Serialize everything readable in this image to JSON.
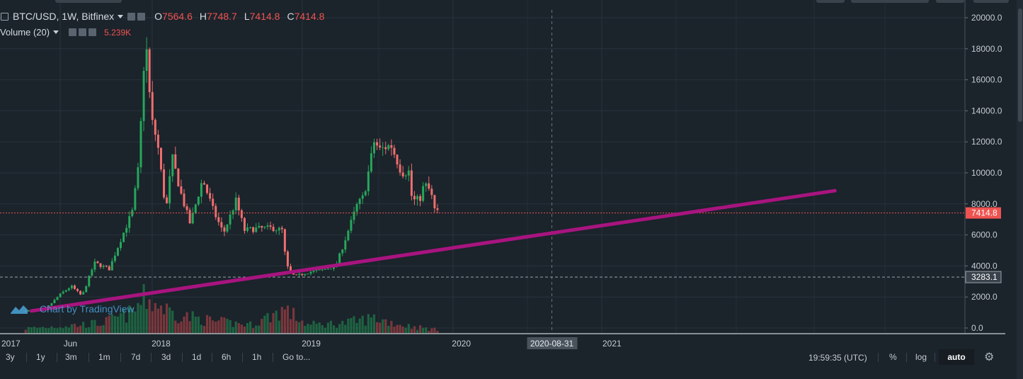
{
  "legend": {
    "symbol": "BTC/USD, 1W, Bitfinex",
    "open_label": "O",
    "open": "7564.6",
    "high_label": "H",
    "high": "7748.7",
    "low_label": "L",
    "low": "7414.8",
    "close_label": "C",
    "close": "7414.8",
    "volume_label": "Volume (20)",
    "volume_value": "5.239K"
  },
  "watermark": "Chart by TradingView",
  "toolbar": {
    "ranges": [
      "3y",
      "1y",
      "3m",
      "1m",
      "7d",
      "3d",
      "1d",
      "6h",
      "1h",
      "Go to..."
    ],
    "time": "19:59:35 (UTC)",
    "percent": "%",
    "log": "log",
    "auto": "auto"
  },
  "colors": {
    "background": "#1b232b",
    "up": "#26a65b",
    "down": "#ef6e6e",
    "trendline": "#a8147f",
    "price_label": "#ef5350"
  },
  "chart_data": {
    "type": "candlestick",
    "title": "BTC/USD, 1W, Bitfinex",
    "y_ticks": [
      0,
      2000,
      4000,
      6000,
      8000,
      10000,
      12000,
      14000,
      16000,
      18000,
      20000
    ],
    "y_tick_labels": [
      "0.0",
      "2000.0",
      "4000.0",
      "6000.0",
      "8000.0",
      "10000.0",
      "12000.0",
      "14000.0",
      "16000.0",
      "18000.0",
      "20000.0"
    ],
    "ylim": [
      0,
      20000
    ],
    "x_tick_labels": [
      {
        "label": "2017",
        "date": "2017-01-01"
      },
      {
        "label": "Jun",
        "date": "2017-06-01"
      },
      {
        "label": "2018",
        "date": "2018-01-01"
      },
      {
        "label": "2019",
        "date": "2019-01-01"
      },
      {
        "label": "2020",
        "date": "2020-01-01"
      },
      {
        "label": "2021",
        "date": "2021-01-01"
      }
    ],
    "xlim": [
      "2016-12-30",
      "2022-07-20"
    ],
    "cursor_date": "2020-08-31",
    "last_price": 7414.8,
    "last_price_label": "7414.8",
    "marked_price": 3283.1,
    "marked_price_label": "3283.1",
    "trendline": {
      "start": [
        "2017-03-15",
        1100
      ],
      "end": [
        "2022-07-20",
        8850
      ]
    },
    "price_keypoints": [
      [
        "2017-03-01",
        1100
      ],
      [
        "2017-04-20",
        1250
      ],
      [
        "2017-05-25",
        2200
      ],
      [
        "2017-06-20",
        2700
      ],
      [
        "2017-07-16",
        2050
      ],
      [
        "2017-08-15",
        4200
      ],
      [
        "2017-09-20",
        3800
      ],
      [
        "2017-10-15",
        5500
      ],
      [
        "2017-11-15",
        7500
      ],
      [
        "2017-12-01",
        10500
      ],
      [
        "2017-12-17",
        19000
      ],
      [
        "2017-12-31",
        13500
      ],
      [
        "2018-01-15",
        12000
      ],
      [
        "2018-02-05",
        7500
      ],
      [
        "2018-02-20",
        11000
      ],
      [
        "2018-03-15",
        8500
      ],
      [
        "2018-04-05",
        6700
      ],
      [
        "2018-05-05",
        9600
      ],
      [
        "2018-06-01",
        7500
      ],
      [
        "2018-06-25",
        6100
      ],
      [
        "2018-07-25",
        8200
      ],
      [
        "2018-08-15",
        6300
      ],
      [
        "2018-09-10",
        6400
      ],
      [
        "2018-10-20",
        6450
      ],
      [
        "2018-11-14",
        6300
      ],
      [
        "2018-11-25",
        4000
      ],
      [
        "2018-12-15",
        3300
      ],
      [
        "2019-01-15",
        3600
      ],
      [
        "2019-02-15",
        3700
      ],
      [
        "2019-03-25",
        4000
      ],
      [
        "2019-04-10",
        5200
      ],
      [
        "2019-05-15",
        7900
      ],
      [
        "2019-06-01",
        8500
      ],
      [
        "2019-06-26",
        12000
      ],
      [
        "2019-07-10",
        11500
      ],
      [
        "2019-08-06",
        11800
      ],
      [
        "2019-09-01",
        10000
      ],
      [
        "2019-09-20",
        10100
      ],
      [
        "2019-09-26",
        8200
      ],
      [
        "2019-10-15",
        8300
      ],
      [
        "2019-10-26",
        9300
      ],
      [
        "2019-11-10",
        8800
      ],
      [
        "2019-11-22",
        7400
      ],
      [
        "2019-12-01",
        7500
      ]
    ],
    "volume_keypoints": [
      [
        "2017-03-01",
        0.15
      ],
      [
        "2017-06-01",
        0.22
      ],
      [
        "2017-09-01",
        0.3
      ],
      [
        "2017-11-15",
        0.6
      ],
      [
        "2017-12-15",
        1.0
      ],
      [
        "2018-01-20",
        0.8
      ],
      [
        "2018-03-01",
        0.55
      ],
      [
        "2018-06-01",
        0.35
      ],
      [
        "2018-09-01",
        0.25
      ],
      [
        "2018-11-20",
        0.7
      ],
      [
        "2019-01-15",
        0.25
      ],
      [
        "2019-04-15",
        0.3
      ],
      [
        "2019-06-25",
        0.45
      ],
      [
        "2019-09-01",
        0.25
      ],
      [
        "2019-12-01",
        0.1
      ]
    ]
  }
}
